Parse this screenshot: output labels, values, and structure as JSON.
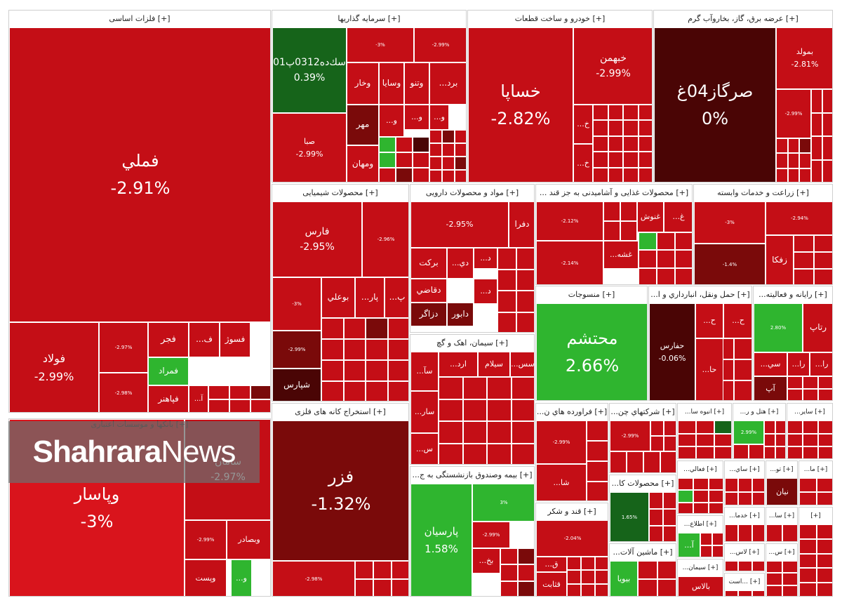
{
  "colors": {
    "red": "#c40e16",
    "red_light": "#d9141c",
    "dark_red": "#7a0a0a",
    "darkest": "#4a0505",
    "green": "#2fb52f",
    "dark_green": "#16641a",
    "border": "#ffffff"
  },
  "watermark": {
    "part1": "Shahrara",
    "part2": "News"
  },
  "chart_data": {
    "type": "treemap",
    "sectors": [
      {
        "name": "[+] فلزات اساسی",
        "tiles": [
          {
            "symbol": "فملي",
            "change": "-2.91%"
          },
          {
            "symbol": "فولاد",
            "change": "-2.99%"
          },
          {
            "symbol": "",
            "change": "-2.97%"
          },
          {
            "symbol": "فجر",
            "change": ""
          },
          {
            "symbol": "ف...",
            "change": ""
          },
          {
            "symbol": "فسوژ",
            "change": ""
          },
          {
            "symbol": "",
            "change": "-2.98%"
          },
          {
            "symbol": "فمراد",
            "change": ""
          },
          {
            "symbol": "فپاهنر",
            "change": ""
          },
          {
            "symbol": "آ...",
            "change": ""
          }
        ]
      },
      {
        "name": "[+] سرمایه گذاریها",
        "tiles": [
          {
            "symbol": "سك‌ده0312پ01",
            "change": "0.39%"
          },
          {
            "symbol": "صبا",
            "change": "-2.99%"
          },
          {
            "symbol": "",
            "change": "-3%"
          },
          {
            "symbol": "",
            "change": "-2.99%"
          },
          {
            "symbol": "وخار",
            "change": ""
          },
          {
            "symbol": "وسايا",
            "change": ""
          },
          {
            "symbol": "وتنو",
            "change": ""
          },
          {
            "symbol": "برد...",
            "change": ""
          },
          {
            "symbol": "مهر",
            "change": ""
          },
          {
            "symbol": "ومهان",
            "change": ""
          },
          {
            "symbol": "و...",
            "change": ""
          },
          {
            "symbol": "و...",
            "change": ""
          },
          {
            "symbol": "و...",
            "change": ""
          }
        ]
      },
      {
        "name": "[+] خودرو و ساخت قطعات",
        "tiles": [
          {
            "symbol": "خساپا",
            "change": "-2.82%"
          },
          {
            "symbol": "خبهمن",
            "change": "-2.99%"
          },
          {
            "symbol": "خ...",
            "change": ""
          },
          {
            "symbol": "خ...",
            "change": ""
          }
        ]
      },
      {
        "name": "[+] عرضه برق، گاز، بخاروآب گرم",
        "tiles": [
          {
            "symbol": "صرگاز04غ",
            "change": "0%"
          },
          {
            "symbol": "بمولد",
            "change": "-2.81%"
          },
          {
            "symbol": "",
            "change": "-2.99%"
          }
        ]
      },
      {
        "name": "[+] محصولات شیمیایی",
        "tiles": [
          {
            "symbol": "فارس",
            "change": "-2.95%"
          },
          {
            "symbol": "",
            "change": "-2.96%"
          },
          {
            "symbol": "",
            "change": "-3%"
          },
          {
            "symbol": "بوعلي",
            "change": ""
          },
          {
            "symbol": "پار...",
            "change": ""
          },
          {
            "symbol": "پ...",
            "change": ""
          },
          {
            "symbol": "",
            "change": "-2.99%"
          },
          {
            "symbol": "شپارس",
            "change": ""
          }
        ]
      },
      {
        "name": "[+] مواد و محصولات دارویی",
        "tiles": [
          {
            "symbol": "",
            "change": "-2.95%"
          },
          {
            "symbol": "دفرا",
            "change": ""
          },
          {
            "symbol": "بركت",
            "change": ""
          },
          {
            "symbol": "دي...",
            "change": ""
          },
          {
            "symbol": "د...",
            "change": ""
          },
          {
            "symbol": "دقاضي",
            "change": ""
          },
          {
            "symbol": "د...",
            "change": ""
          },
          {
            "symbol": "دزاگر",
            "change": ""
          },
          {
            "symbol": "دابور",
            "change": ""
          }
        ]
      },
      {
        "name": "[+] محصولات غذایی و آشامیدنی به جز قند ...",
        "tiles": [
          {
            "symbol": "",
            "change": "-2.12%"
          },
          {
            "symbol": "",
            "change": "-2.14%"
          },
          {
            "symbol": "غنوش",
            "change": ""
          },
          {
            "symbol": "غ...",
            "change": ""
          },
          {
            "symbol": "غشه...",
            "change": ""
          }
        ]
      },
      {
        "name": "[+] زراعت و خدمات وابسته",
        "tiles": [
          {
            "symbol": "",
            "change": "-3%"
          },
          {
            "symbol": "",
            "change": "-2.94%"
          },
          {
            "symbol": "زفكا",
            "change": ""
          },
          {
            "symbol": "",
            "change": "-1.4%"
          }
        ]
      },
      {
        "name": "[+] منسوجات",
        "tiles": [
          {
            "symbol": "محتشم",
            "change": "2.66%"
          }
        ]
      },
      {
        "name": "[+] حمل ونقل، انبارداري و ا...",
        "tiles": [
          {
            "symbol": "حفارس",
            "change": "-0.06%"
          },
          {
            "symbol": "ح...",
            "change": ""
          },
          {
            "symbol": "ح...",
            "change": ""
          },
          {
            "symbol": "حا...",
            "change": ""
          }
        ]
      },
      {
        "name": "[+] رایانه و فعالیته...",
        "tiles": [
          {
            "symbol": "",
            "change": "2.80%"
          },
          {
            "symbol": "رتاپ",
            "change": ""
          },
          {
            "symbol": "سي...",
            "change": ""
          },
          {
            "symbol": "را...",
            "change": ""
          },
          {
            "symbol": "را...",
            "change": ""
          },
          {
            "symbol": "آپ",
            "change": ""
          }
        ]
      },
      {
        "name": "[+] سیمان، اهک و گچ",
        "tiles": [
          {
            "symbol": "ارد...",
            "change": ""
          },
          {
            "symbol": "سيلام",
            "change": ""
          },
          {
            "symbol": "سس...",
            "change": ""
          },
          {
            "symbol": "سآ...",
            "change": ""
          },
          {
            "symbol": "سار...",
            "change": ""
          },
          {
            "symbol": "س...",
            "change": ""
          }
        ]
      },
      {
        "name": "[+] بانکها و موسسات اعتباری",
        "tiles": [
          {
            "symbol": "وپاسار",
            "change": "-3%"
          },
          {
            "symbol": "سامان",
            "change": "-2.97%"
          },
          {
            "symbol": "وبصادر",
            "change": ""
          },
          {
            "symbol": "",
            "change": "-2.99%"
          },
          {
            "symbol": "وپست",
            "change": ""
          },
          {
            "symbol": "و...",
            "change": ""
          }
        ]
      },
      {
        "name": "[+] استخراج کانه های فلزی",
        "tiles": [
          {
            "symbol": "فزر",
            "change": "-1.32%"
          },
          {
            "symbol": "",
            "change": "-2.98%"
          }
        ]
      },
      {
        "name": "[+] بیمه وصندوق بازنشستگی به ج...",
        "tiles": [
          {
            "symbol": "پارسيان",
            "change": "1.58%"
          },
          {
            "symbol": "",
            "change": "3%"
          },
          {
            "symbol": "",
            "change": "-2.99%"
          },
          {
            "symbol": "بخ...",
            "change": ""
          }
        ]
      },
      {
        "name": "[+] فراورده هاي ن...",
        "tiles": [
          {
            "symbol": "",
            "change": "-2.99%"
          },
          {
            "symbol": "شا...",
            "change": ""
          }
        ]
      },
      {
        "name": "[+] شركتهاي چن...",
        "tiles": [
          {
            "symbol": "",
            "change": "-2.99%"
          }
        ]
      },
      {
        "name": "[+] انبوه سا...",
        "tiles": []
      },
      {
        "name": "[+] هتل و ر...",
        "tiles": [
          {
            "symbol": "",
            "change": "2.99%"
          }
        ]
      },
      {
        "name": "[+] سایر...",
        "tiles": []
      },
      {
        "name": "[+] محصولات كا...",
        "tiles": [
          {
            "symbol": "",
            "change": "1.65%"
          }
        ]
      },
      {
        "name": "[+] قند و شکر",
        "tiles": [
          {
            "symbol": "",
            "change": "-2.04%"
          },
          {
            "symbol": "ق...",
            "change": ""
          },
          {
            "symbol": "قثابت",
            "change": ""
          }
        ]
      },
      {
        "name": "[+] ماشين آلات...",
        "tiles": [
          {
            "symbol": "بيويا",
            "change": ""
          }
        ]
      },
      {
        "name": "[+] فعالي...",
        "tiles": []
      },
      {
        "name": "[+] ساي...",
        "tiles": []
      },
      {
        "name": "[+] تو...",
        "tiles": [
          {
            "symbol": "نيان",
            "change": ""
          }
        ]
      },
      {
        "name": "[+] ما...",
        "tiles": []
      },
      {
        "name": "[+] اطلاع...",
        "tiles": [
          {
            "symbol": "آ...",
            "change": ""
          }
        ]
      },
      {
        "name": "[+] خدما...",
        "tiles": []
      },
      {
        "name": "[+] سا...",
        "tiles": []
      },
      {
        "name": "[+] سيمان...",
        "tiles": [
          {
            "symbol": "بالاس",
            "change": ""
          }
        ]
      },
      {
        "name": "[+] لاس...",
        "tiles": []
      },
      {
        "name": "[+] ...است",
        "tiles": []
      },
      {
        "name": "[+] س...",
        "tiles": []
      },
      {
        "name": "[+]",
        "tiles": []
      }
    ]
  }
}
